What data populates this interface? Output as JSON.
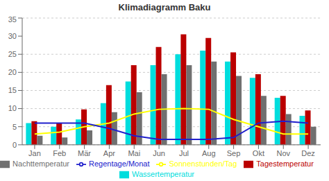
{
  "chart_data": {
    "type": "bar",
    "title": "Klimadiagramm Baku",
    "categories": [
      "Jan",
      "Feb",
      "Mär",
      "Apr",
      "Mai",
      "Jun",
      "Jul",
      "Aug",
      "Sep",
      "Okt",
      "Nov",
      "Dez"
    ],
    "series": [
      {
        "name": "Wassertemperatur",
        "type": "bar",
        "color": "#00dddd",
        "values": [
          6,
          5,
          7,
          11.5,
          17.5,
          22,
          25,
          26,
          23,
          18.5,
          13,
          8
        ]
      },
      {
        "name": "Tagestemperatur",
        "type": "bar",
        "color": "#bb0000",
        "values": [
          6.5,
          6,
          9.8,
          16.5,
          22,
          27,
          30.5,
          29.5,
          25.5,
          19.5,
          13.5,
          9.5
        ]
      },
      {
        "name": "Nachttemperatur",
        "type": "bar",
        "color": "#707070",
        "values": [
          2.5,
          2,
          4,
          9,
          14.5,
          19.5,
          22,
          23,
          19,
          13.5,
          8.5,
          5
        ]
      },
      {
        "name": "Sonnenstunden/Tag",
        "type": "line",
        "color": "#ffff00",
        "values": [
          3,
          3.5,
          5,
          6,
          8.5,
          9.8,
          10,
          9.8,
          7,
          5,
          3,
          3
        ]
      },
      {
        "name": "Regentage/Monat",
        "type": "line",
        "color": "#2020cc",
        "values": [
          6,
          6,
          6,
          4.5,
          2.5,
          1.5,
          1.5,
          1.5,
          2,
          6,
          6.5,
          6
        ]
      }
    ],
    "ylim": [
      0,
      35
    ],
    "yticks": [
      0,
      5,
      10,
      15,
      20,
      25,
      30,
      35
    ],
    "grid": true,
    "legend": "bottom"
  }
}
